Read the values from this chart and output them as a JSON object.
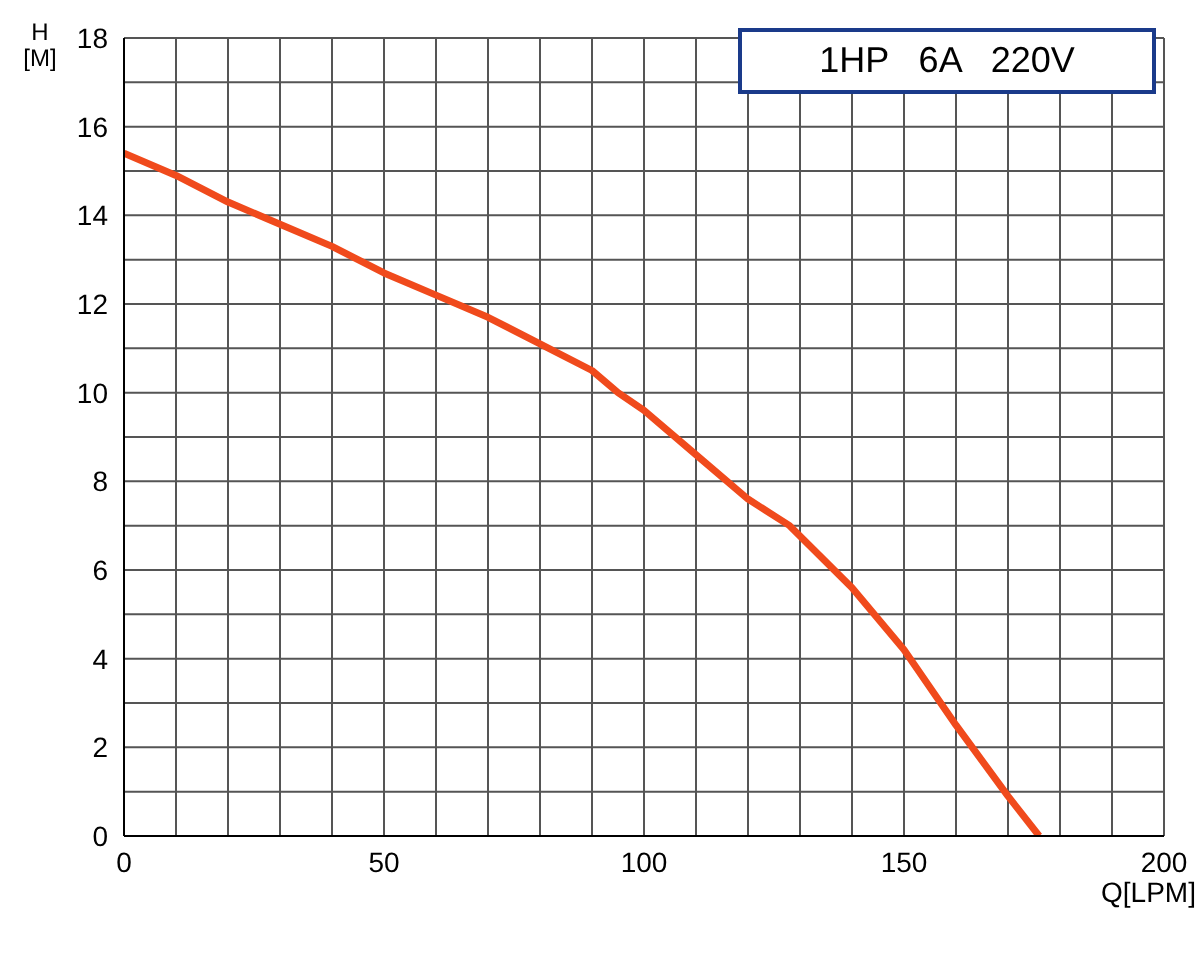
{
  "chart_data": {
    "type": "line",
    "xlabel": "Q[LPM]",
    "ylabel": "H [M]",
    "annotations": [
      "1HP   6A   220V"
    ],
    "x": [
      0,
      10,
      20,
      30,
      40,
      50,
      60,
      70,
      80,
      90,
      95,
      100,
      110,
      120,
      128,
      140,
      150,
      160,
      170,
      176
    ],
    "series": [
      {
        "color": "#f04a1c",
        "values": [
          15.4,
          14.9,
          14.3,
          13.8,
          13.3,
          12.7,
          12.2,
          11.7,
          11.1,
          10.5,
          10.0,
          9.6,
          8.6,
          7.6,
          7.0,
          5.6,
          4.2,
          2.5,
          0.9,
          0
        ]
      }
    ],
    "xlim": [
      0,
      200
    ],
    "ylim": [
      0,
      18
    ],
    "xticks": [
      0,
      {
        "value": 10,
        "label": null
      },
      {
        "value": 20,
        "label": null
      },
      {
        "value": 30,
        "label": null
      },
      {
        "value": 40,
        "label": null
      },
      50,
      {
        "value": 60,
        "label": null
      },
      {
        "value": 70,
        "label": null
      },
      {
        "value": 80,
        "label": null
      },
      {
        "value": 90,
        "label": null
      },
      100,
      {
        "value": 110,
        "label": null
      },
      {
        "value": 120,
        "label": null
      },
      {
        "value": 130,
        "label": null
      },
      {
        "value": 140,
        "label": null
      },
      150,
      {
        "value": 160,
        "label": null
      },
      {
        "value": 170,
        "label": null
      },
      {
        "value": 180,
        "label": null
      },
      {
        "value": 190,
        "label": null
      },
      200
    ],
    "yticks": [
      0,
      {
        "value": 1,
        "label": null
      },
      2,
      {
        "value": 3,
        "label": null
      },
      4,
      {
        "value": 5,
        "label": null
      },
      6,
      {
        "value": 7,
        "label": null
      },
      8,
      {
        "value": 9,
        "label": null
      },
      10,
      {
        "value": 11,
        "label": null
      },
      12,
      {
        "value": 13,
        "label": null
      },
      14,
      {
        "value": 15,
        "label": null
      },
      16,
      {
        "value": 17,
        "label": null
      },
      18
    ],
    "grid": true,
    "marker": "none",
    "line_style": "solid"
  }
}
